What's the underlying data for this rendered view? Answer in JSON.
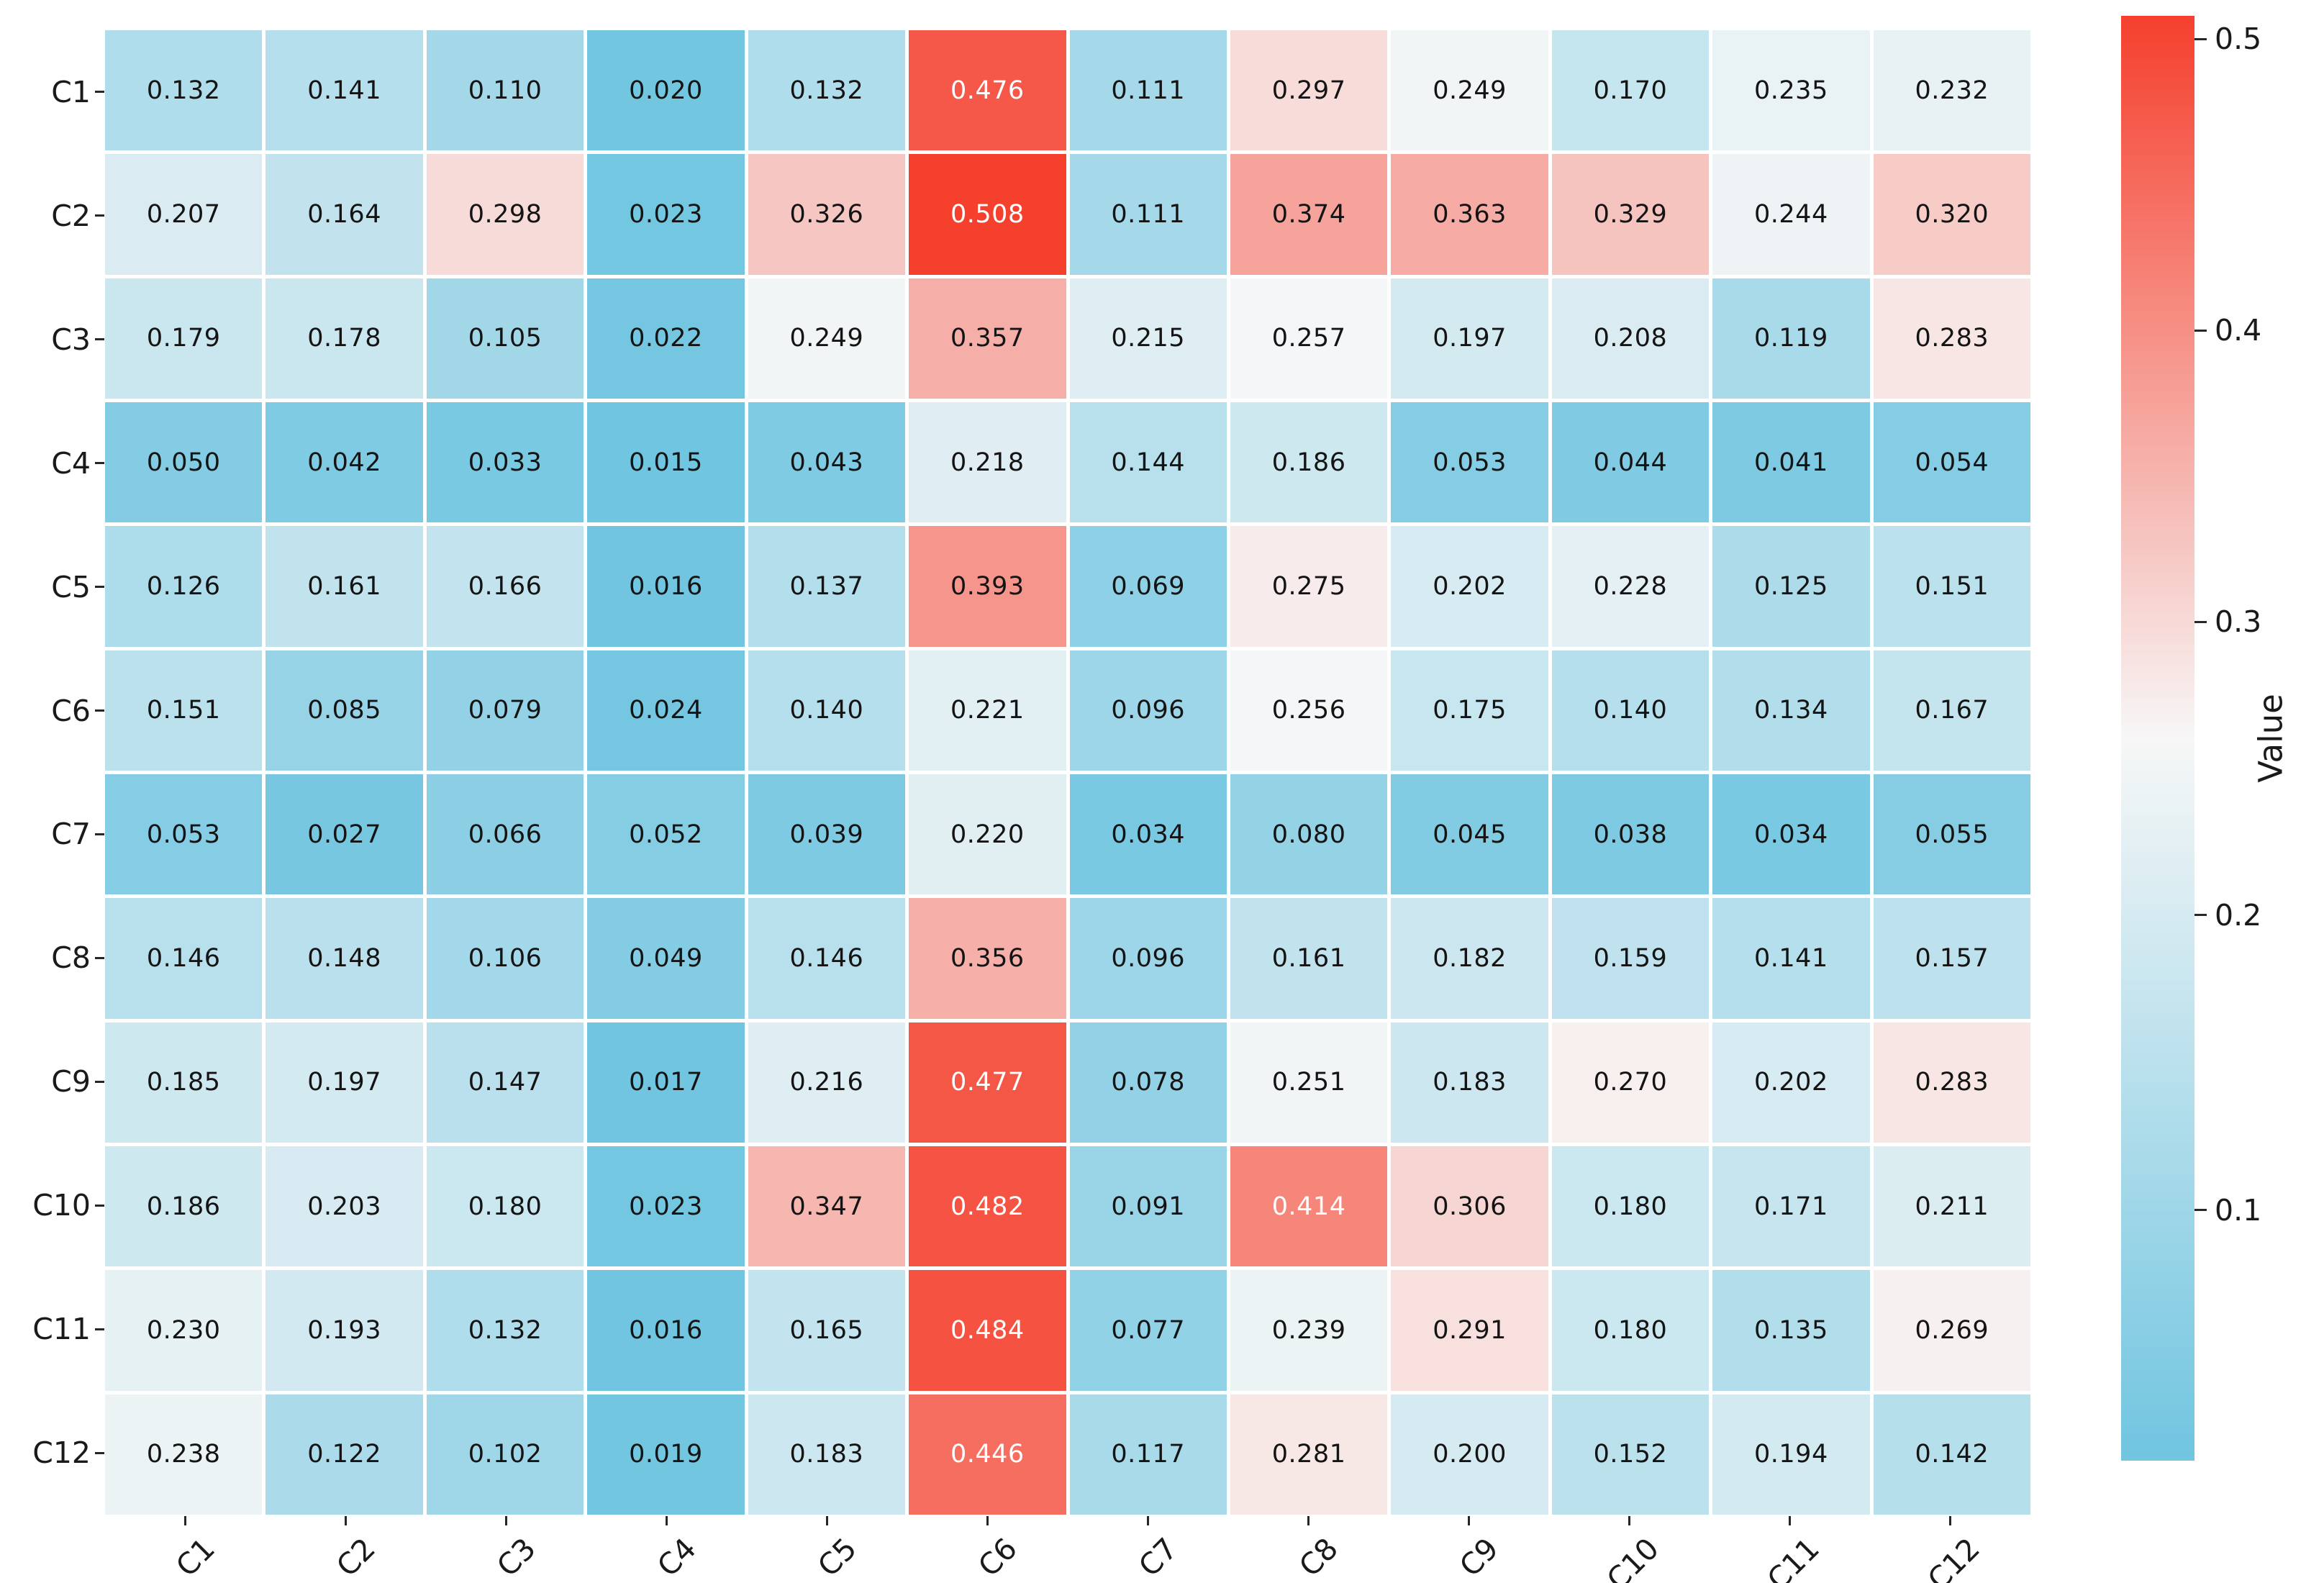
{
  "chart_data": {
    "type": "heatmap",
    "title": "",
    "row_labels": [
      "C1",
      "C2",
      "C3",
      "C4",
      "C5",
      "C6",
      "C7",
      "C8",
      "C9",
      "C10",
      "C11",
      "C12"
    ],
    "col_labels": [
      "C1",
      "C2",
      "C3",
      "C4",
      "C5",
      "C6",
      "C7",
      "C8",
      "C9",
      "C10",
      "C11",
      "C12"
    ],
    "values": [
      [
        "0.132",
        "0.141",
        "0.110",
        "0.020",
        "0.132",
        "0.476",
        "0.111",
        "0.297",
        "0.249",
        "0.170",
        "0.235",
        "0.232"
      ],
      [
        "0.207",
        "0.164",
        "0.298",
        "0.023",
        "0.326",
        "0.508",
        "0.111",
        "0.374",
        "0.363",
        "0.329",
        "0.244",
        "0.320"
      ],
      [
        "0.179",
        "0.178",
        "0.105",
        "0.022",
        "0.249",
        "0.357",
        "0.215",
        "0.257",
        "0.197",
        "0.208",
        "0.119",
        "0.283"
      ],
      [
        "0.050",
        "0.042",
        "0.033",
        "0.015",
        "0.043",
        "0.218",
        "0.144",
        "0.186",
        "0.053",
        "0.044",
        "0.041",
        "0.054"
      ],
      [
        "0.126",
        "0.161",
        "0.166",
        "0.016",
        "0.137",
        "0.393",
        "0.069",
        "0.275",
        "0.202",
        "0.228",
        "0.125",
        "0.151"
      ],
      [
        "0.151",
        "0.085",
        "0.079",
        "0.024",
        "0.140",
        "0.221",
        "0.096",
        "0.256",
        "0.175",
        "0.140",
        "0.134",
        "0.167"
      ],
      [
        "0.053",
        "0.027",
        "0.066",
        "0.052",
        "0.039",
        "0.220",
        "0.034",
        "0.080",
        "0.045",
        "0.038",
        "0.034",
        "0.055"
      ],
      [
        "0.146",
        "0.148",
        "0.106",
        "0.049",
        "0.146",
        "0.356",
        "0.096",
        "0.161",
        "0.182",
        "0.159",
        "0.141",
        "0.157"
      ],
      [
        "0.185",
        "0.197",
        "0.147",
        "0.017",
        "0.216",
        "0.477",
        "0.078",
        "0.251",
        "0.183",
        "0.270",
        "0.202",
        "0.283"
      ],
      [
        "0.186",
        "0.203",
        "0.180",
        "0.023",
        "0.347",
        "0.482",
        "0.091",
        "0.414",
        "0.306",
        "0.180",
        "0.171",
        "0.211"
      ],
      [
        "0.230",
        "0.193",
        "0.132",
        "0.016",
        "0.165",
        "0.484",
        "0.077",
        "0.239",
        "0.291",
        "0.180",
        "0.135",
        "0.269"
      ],
      [
        "0.238",
        "0.122",
        "0.102",
        "0.019",
        "0.183",
        "0.446",
        "0.117",
        "0.281",
        "0.200",
        "0.152",
        "0.194",
        "0.142"
      ]
    ],
    "colorbar": {
      "label": "Value",
      "ticks": [
        "0.5",
        "0.4",
        "0.3",
        "0.2",
        "0.1"
      ],
      "position": "right"
    },
    "colormap": {
      "vmin": 0.015,
      "vcenter": 0.26,
      "vmax": 0.508,
      "color_min": "#70c5e0",
      "color_mid": "#f7f7f7",
      "color_max": "#f5402e",
      "white_text_threshold": 0.41
    },
    "layout": {
      "grid": "off",
      "cell_annotations": true,
      "x_tick_rotation_deg": 45,
      "background": "#ffffff"
    }
  }
}
